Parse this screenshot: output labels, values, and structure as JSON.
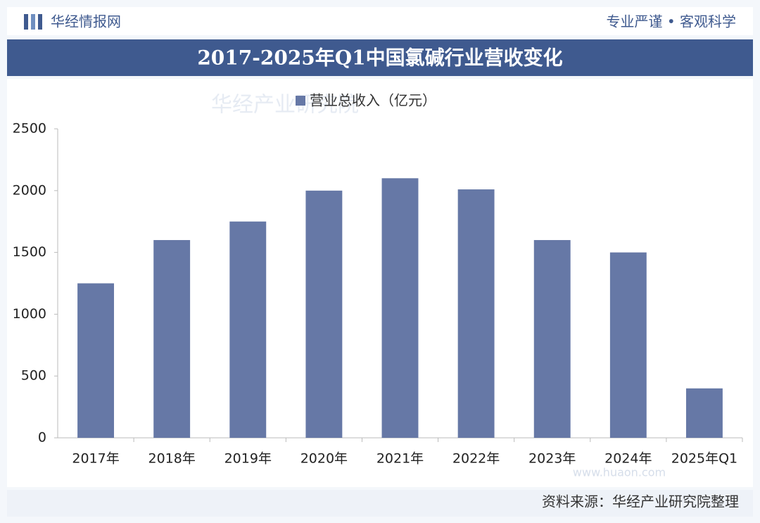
{
  "header": {
    "brand": "华经情报网",
    "slogan": "专业严谨 • 客观科学"
  },
  "chart_data": {
    "type": "bar",
    "title": "2017-2025年Q1中国氯碱行业营收变化",
    "categories": [
      "2017年",
      "2018年",
      "2019年",
      "2020年",
      "2021年",
      "2022年",
      "2023年",
      "2024年",
      "2025年Q1"
    ],
    "series": [
      {
        "name": "营业总收入（亿元）",
        "color": "#6678a6",
        "values": [
          1250,
          1600,
          1750,
          2000,
          2100,
          2010,
          1600,
          1500,
          400
        ]
      }
    ],
    "ylim": [
      0,
      2500
    ],
    "yticks": [
      0,
      500,
      1000,
      1500,
      2000,
      2500
    ],
    "grid": false
  },
  "watermark": [
    "华经产业研究院",
    "www.huaon.com"
  ],
  "source": "资料来源：华经产业研究院整理"
}
